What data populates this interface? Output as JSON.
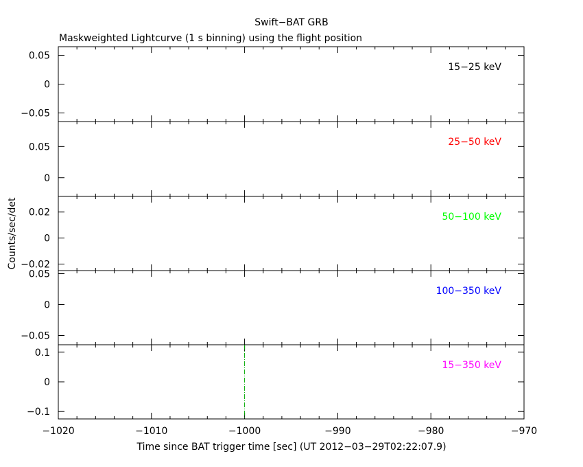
{
  "chart_data": {
    "type": "line",
    "title": "Swift−BAT GRB",
    "subtitle": "Maskweighted Lightcurve (1 s binning) using the flight position",
    "xlabel": "Time since BAT trigger time [sec] (UT 2012−03−29T02:22:07.9)",
    "ylabel": "Counts/sec/det",
    "xlim": [
      -1020,
      -970
    ],
    "x_ticks": [
      {
        "value": -1020,
        "label": "−1020"
      },
      {
        "value": -1010,
        "label": "−1010"
      },
      {
        "value": -1000,
        "label": "−1000"
      },
      {
        "value": -990,
        "label": "−990"
      },
      {
        "value": -980,
        "label": "−980"
      },
      {
        "value": -970,
        "label": "−970"
      }
    ],
    "panels": [
      {
        "name": "15−25 keV",
        "color": "#000000",
        "ylim": [
          -0.065,
          0.065
        ],
        "y_ticks": [
          {
            "value": 0.05,
            "label": "0.05"
          },
          {
            "value": 0,
            "label": "0"
          },
          {
            "value": -0.05,
            "label": "−0.05"
          }
        ],
        "x": [],
        "y": []
      },
      {
        "name": "25−50 keV",
        "color": "#ff0000",
        "ylim": [
          -0.03,
          0.09
        ],
        "y_ticks": [
          {
            "value": 0.05,
            "label": "0.05"
          },
          {
            "value": 0,
            "label": "0"
          }
        ],
        "x": [],
        "y": []
      },
      {
        "name": "50−100 keV",
        "color": "#00ff00",
        "ylim": [
          -0.025,
          0.032
        ],
        "y_ticks": [
          {
            "value": 0.02,
            "label": "0.02"
          },
          {
            "value": 0,
            "label": "0"
          },
          {
            "value": -0.02,
            "label": "−0.02"
          }
        ],
        "x": [],
        "y": []
      },
      {
        "name": "100−350 keV",
        "color": "#0000ff",
        "ylim": [
          -0.065,
          0.055
        ],
        "y_ticks": [
          {
            "value": 0.05,
            "label": "0.05"
          },
          {
            "value": 0,
            "label": "0"
          },
          {
            "value": -0.05,
            "label": "−0.05"
          }
        ],
        "x": [],
        "y": []
      },
      {
        "name": "15−350 keV",
        "color": "#ff00ff",
        "ylim": [
          -0.125,
          0.125
        ],
        "y_ticks": [
          {
            "value": 0.1,
            "label": "0.1"
          },
          {
            "value": 0,
            "label": "0"
          },
          {
            "value": -0.1,
            "label": "−0.1"
          }
        ],
        "x": [],
        "y": []
      }
    ],
    "markers": [
      {
        "x": -1000,
        "panel": 4,
        "style": "dash-dot",
        "color": "#00aa00"
      }
    ],
    "grid": false,
    "legend": "none"
  }
}
